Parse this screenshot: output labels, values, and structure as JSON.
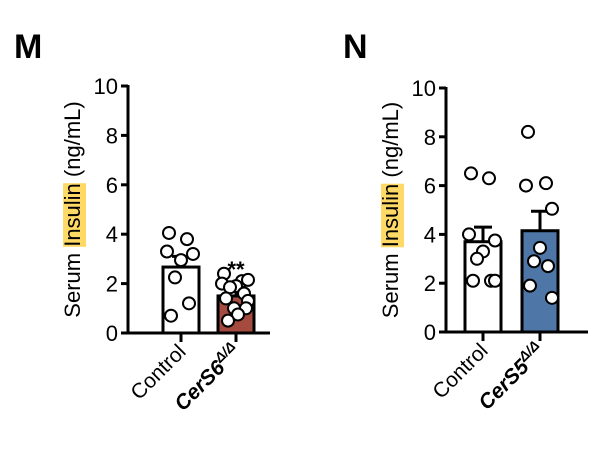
{
  "chart_data": [
    {
      "type": "bar",
      "panel_label": "M",
      "ylabel_parts": [
        "Serum ",
        "Insulin",
        " (ng/mL)"
      ],
      "ylabel_highlight_color": "#FFD966",
      "ylim": [
        0,
        10
      ],
      "yticks": [
        "0",
        "2",
        "4",
        "6",
        "8",
        "10"
      ],
      "categories": [
        {
          "main": "Control",
          "sup": ""
        },
        {
          "main": "CerS6",
          "sup": "Δ/Δ"
        }
      ],
      "values": [
        2.67,
        1.5
      ],
      "sem_upper": [
        3.1,
        1.7
      ],
      "bar_colors": [
        "#FFFFFF",
        "#A44A3F"
      ],
      "points": [
        [
          4.05,
          3.8,
          3.3,
          3.2,
          2.95,
          2.25,
          1.2,
          0.7
        ],
        [
          2.4,
          2.1,
          2.0,
          2.15,
          1.9,
          1.85,
          1.6,
          1.4,
          1.3,
          1.0,
          1.0,
          0.75,
          0.5
        ]
      ],
      "significance": [
        "",
        "**"
      ]
    },
    {
      "type": "bar",
      "panel_label": "N",
      "ylabel_parts": [
        "Serum ",
        "Insulin",
        " (ng/mL)"
      ],
      "ylabel_highlight_color": "#FFD966",
      "ylim": [
        0,
        10
      ],
      "yticks": [
        "0",
        "2",
        "4",
        "6",
        "8",
        "10"
      ],
      "categories": [
        {
          "main": "Control",
          "sup": ""
        },
        {
          "main": "CerS5",
          "sup": "Δ/Δ"
        }
      ],
      "values": [
        3.7,
        4.15
      ],
      "sem_upper": [
        4.3,
        4.95
      ],
      "bar_colors": [
        "#FFFFFF",
        "#4E76A6"
      ],
      "points": [
        [
          6.5,
          6.3,
          4.0,
          3.75,
          3.3,
          3.0,
          2.1,
          2.1,
          2.1
        ],
        [
          8.2,
          6.1,
          6.0,
          5.05,
          3.45,
          2.9,
          2.7,
          1.9,
          1.4
        ]
      ],
      "significance": [
        "",
        ""
      ]
    }
  ]
}
